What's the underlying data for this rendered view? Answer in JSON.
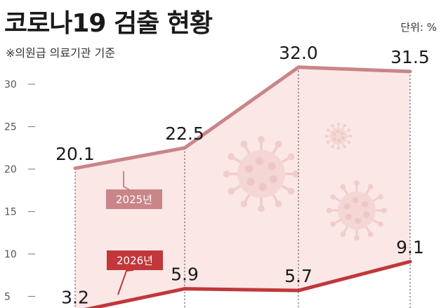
{
  "header": {
    "title": "코로나19 검출 현황",
    "subtitle": "※의원급 의료기관 기준",
    "unit": "단위: %"
  },
  "chart_data": {
    "type": "area",
    "title": "코로나19 검출 현황",
    "subtitle": "※의원급 의료기관 기준",
    "ylabel": "단위: %",
    "ylim": [
      0,
      33
    ],
    "yticks": [
      5,
      10,
      15,
      20,
      25,
      30
    ],
    "x": [
      1,
      2,
      3,
      4
    ],
    "grid": false,
    "series": [
      {
        "name": "2025년",
        "values": [
          20.1,
          22.5,
          32.0,
          31.5
        ],
        "labels": [
          "20.1",
          "22.5",
          "32.0",
          "31.5"
        ],
        "color": "#c98588"
      },
      {
        "name": "2026년",
        "values": [
          3.2,
          5.9,
          5.7,
          9.1
        ],
        "labels": [
          "3.2",
          "5.9",
          "5.7",
          "9.1"
        ],
        "color": "#c1373a"
      }
    ],
    "fill_color": "#fbe7e6",
    "decorations": [
      "virus-icon",
      "virus-icon",
      "virus-icon"
    ]
  }
}
